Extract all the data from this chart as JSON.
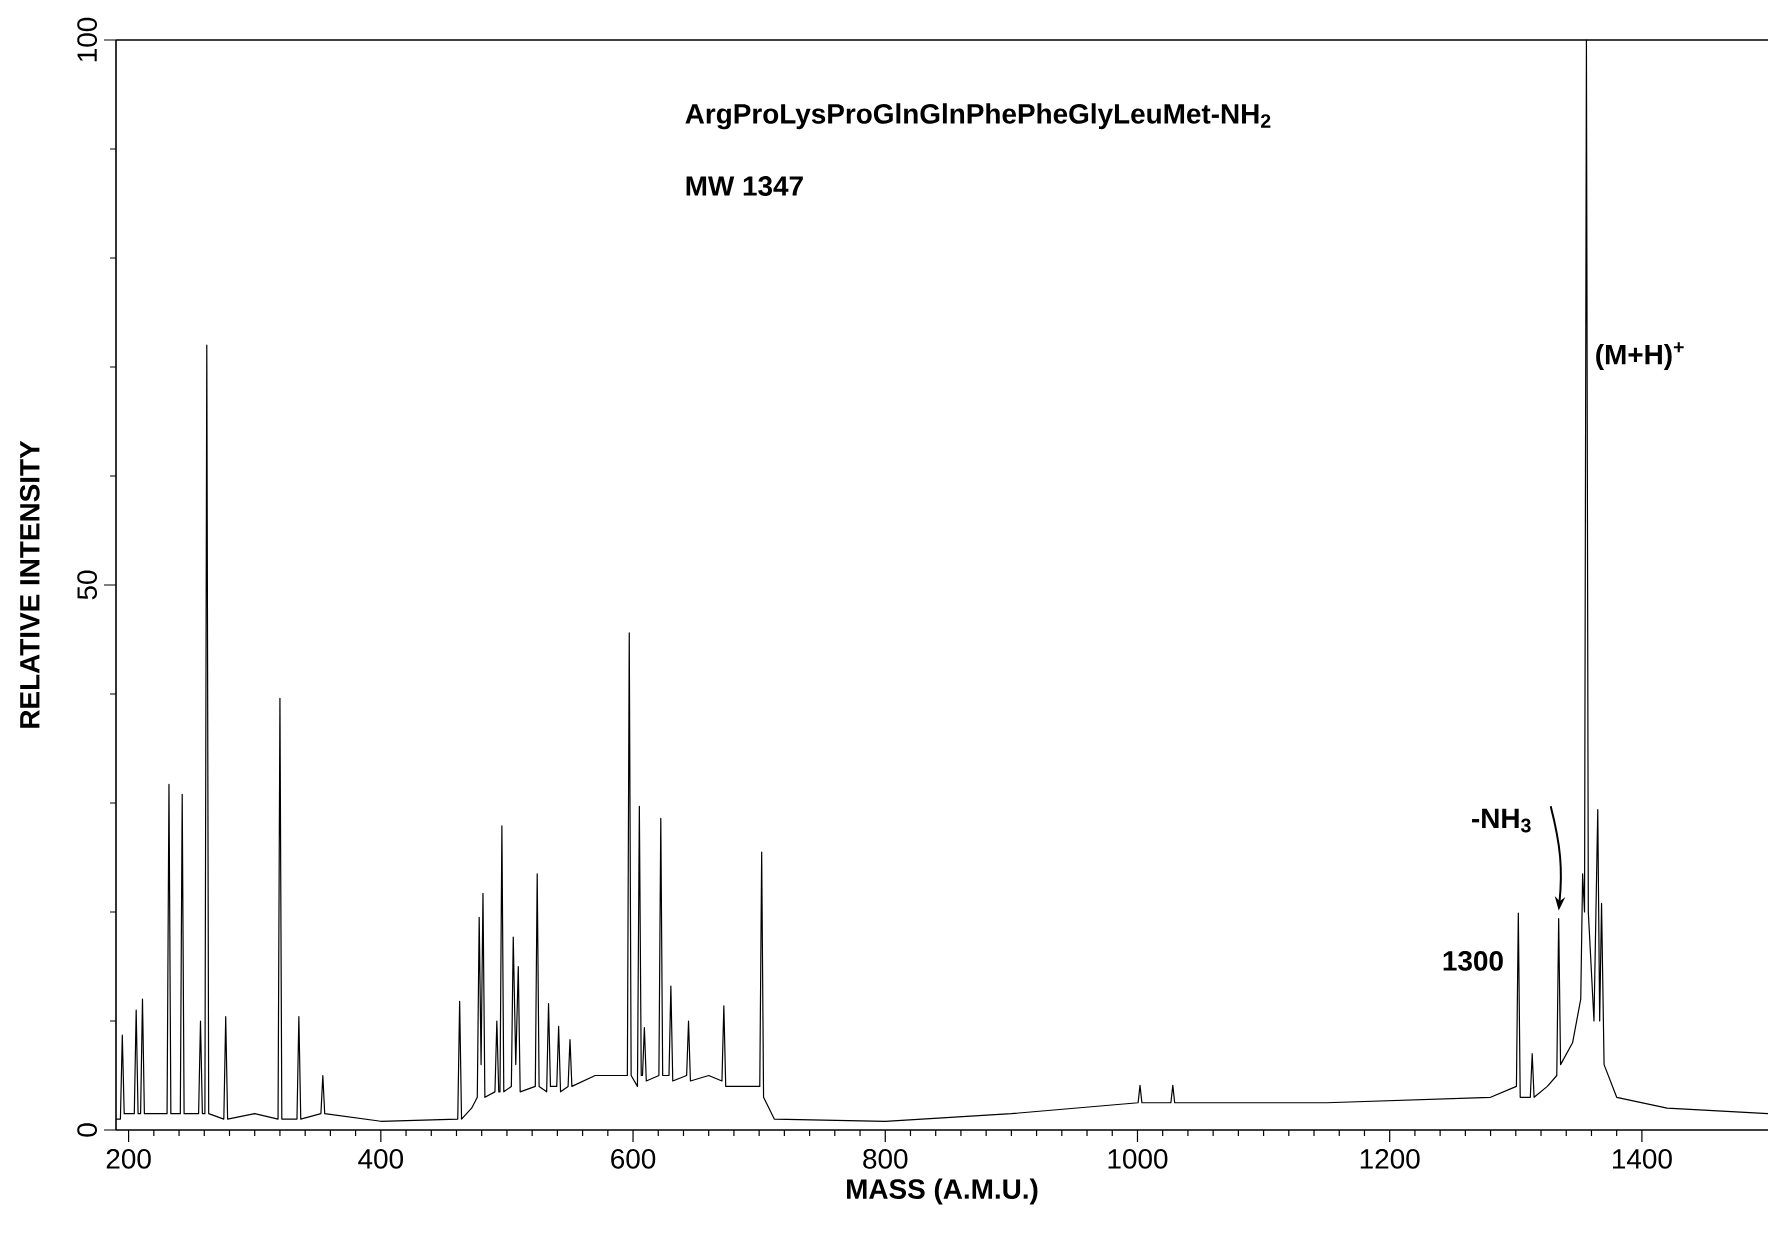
{
  "chart_data": {
    "type": "line",
    "xlabel": "MASS (A.M.U.)",
    "ylabel": "RELATIVE INTENSITY",
    "xlim": [
      190,
      1500
    ],
    "ylim": [
      0,
      100
    ],
    "xticks": [
      200,
      400,
      600,
      800,
      1000,
      1200,
      1400
    ],
    "yticks": [
      0,
      50,
      100
    ],
    "annotations": [
      "ArgProLysProGlnGlnPhePheGlyLeuMet-NH$_{2}$",
      "MW 1347",
      {
        "text": "(M+H)$^{+}$",
        "x": 1356,
        "y": 71
      },
      {
        "text": "-NH$_{3}$",
        "x": 1334,
        "y": 19.4
      },
      {
        "text": "1300",
        "x": 1302,
        "y": 19.9
      }
    ],
    "series": [
      {
        "color": "#000000",
        "x": [
          190,
          193.5,
          195,
          196.5,
          204.5,
          206,
          207.5,
          209.5,
          211,
          212.5,
          230.5,
          232,
          233.5,
          241,
          242.5,
          244,
          255.5,
          257,
          258.5,
          260.5,
          262,
          263.5,
          275.5,
          277,
          278.5,
          300,
          318.5,
          320,
          321.5,
          333.5,
          335,
          336.5,
          352.5,
          354,
          355.5,
          400,
          461,
          462.5,
          464,
          472,
          476.5,
          478,
          479.5,
          481,
          482.5,
          490.5,
          492,
          493.5,
          494.5,
          496,
          497.5,
          503.5,
          505,
          507,
          509,
          510.5,
          522.5,
          524,
          525.5,
          531.5,
          533,
          534.5,
          539.5,
          541,
          542.5,
          548.5,
          550,
          551.5,
          570,
          595.5,
          597,
          598.5,
          603.5,
          605,
          606.5,
          607.5,
          609,
          610.5,
          620.5,
          622,
          623.5,
          628.5,
          630,
          631.5,
          642.5,
          644,
          645.5,
          660,
          670.5,
          672,
          673.5,
          700.5,
          702,
          703.5,
          712,
          800,
          900,
          1000.5,
          1002,
          1003.5,
          1026.5,
          1028,
          1029.5,
          1150,
          1280,
          1300.5,
          1302,
          1303.5,
          1311.5,
          1313,
          1314.5,
          1325,
          1332.5,
          1334,
          1335.5,
          1345,
          1351.5,
          1353,
          1354.5,
          1356,
          1357.5,
          1362,
          1365,
          1366.5,
          1368,
          1370,
          1380,
          1420,
          1500
        ],
        "values": [
          1,
          1,
          8.7,
          1.5,
          1.5,
          11,
          1.5,
          1.5,
          12,
          1.5,
          1.5,
          31.7,
          1.5,
          1.5,
          30.8,
          1.5,
          1.5,
          10,
          1.5,
          1.5,
          72,
          1.5,
          1,
          10.4,
          1,
          1.5,
          1,
          39.6,
          1,
          1,
          10.4,
          1,
          1.5,
          5,
          1.5,
          0.8,
          1,
          11.8,
          1,
          2,
          3,
          19.5,
          6,
          21.7,
          3,
          3.5,
          10,
          3.5,
          3.5,
          27.9,
          3.5,
          4,
          17.7,
          6,
          15,
          3.5,
          4,
          23.5,
          4,
          3.5,
          11.6,
          4,
          4,
          9.5,
          3.5,
          4,
          8.3,
          4,
          5,
          5,
          45.6,
          5,
          4,
          29.7,
          5,
          5,
          9.4,
          4.5,
          5,
          28.6,
          5,
          5,
          13.2,
          4.5,
          5,
          10,
          4.5,
          5,
          4.5,
          11.4,
          4,
          4,
          25.5,
          3,
          1,
          0.8,
          1.5,
          2.5,
          4.1,
          2.5,
          2.5,
          4.1,
          2.5,
          2.5,
          3,
          4,
          19.9,
          3,
          3,
          7,
          3,
          4,
          5,
          19.4,
          6,
          8,
          12,
          23.5,
          20,
          100,
          20,
          10,
          29.4,
          10,
          20.8,
          6,
          3,
          2,
          1.5
        ]
      }
    ]
  }
}
